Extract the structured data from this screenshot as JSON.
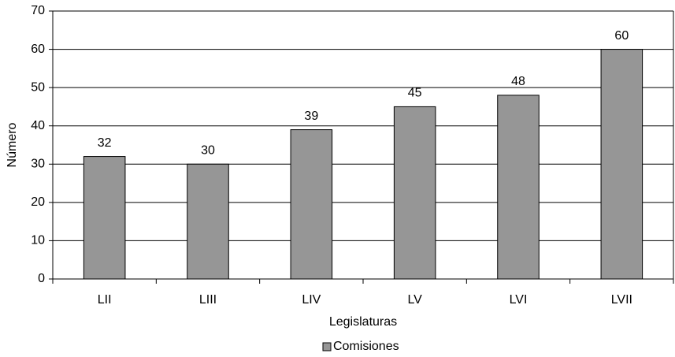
{
  "chart_data": {
    "type": "bar",
    "categories": [
      "LII",
      "LIII",
      "LIV",
      "LV",
      "LVI",
      "LVII"
    ],
    "series": [
      {
        "name": "Comisiones",
        "color": "#969696",
        "values": [
          32,
          30,
          39,
          45,
          48,
          60
        ]
      }
    ],
    "ylim": [
      0,
      70
    ],
    "yticks": [
      0,
      10,
      20,
      30,
      40,
      50,
      60,
      70
    ],
    "grid": true,
    "ylabel": "Número",
    "xlabel": "Legislaturas",
    "legend": "bottom"
  }
}
